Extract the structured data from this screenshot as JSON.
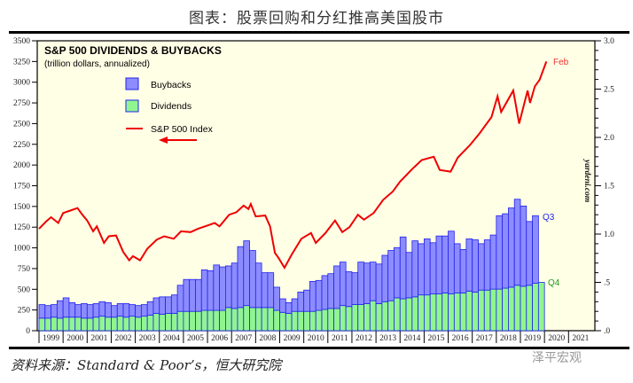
{
  "header": {
    "title": "图表：股票回购和分红推高美国股市"
  },
  "footer": {
    "source": "资料来源：Standard & Poor’s，恒大研究院",
    "watermark": "泽平宏观"
  },
  "chart_data": {
    "type": "bar",
    "title": "S&P 500 DIVIDENDS & BUYBACKS",
    "subtitle": "(trillion dollars, annualized)",
    "credit": "yardeni.com",
    "legend": [
      {
        "name": "Buybacks",
        "color": "#8c8cff"
      },
      {
        "name": "Dividends",
        "color": "#90f590"
      },
      {
        "name": "S&P 500 Index",
        "color": "#ee0000"
      }
    ],
    "legend_placement": "top-left",
    "annotations": {
      "buybacks_last": "Q3",
      "dividends_last": "Q4",
      "index_last": "Feb"
    },
    "left_axis": {
      "label": "S&P 500 Index",
      "ylim": [
        0,
        3500
      ],
      "ticks": [
        "0",
        "250",
        "500",
        "750",
        "1000",
        "1250",
        "1500",
        "1750",
        "2000",
        "2250",
        "2500",
        "2750",
        "3000",
        "3250",
        "3500"
      ]
    },
    "right_axis": {
      "label": "trillion dollars",
      "ylim": [
        0,
        3.0
      ],
      "ticks": [
        ".0",
        ".5",
        "1.0",
        "1.5",
        "2.0",
        "2.5",
        "3.0"
      ]
    },
    "x_tick_labels": [
      "1999",
      "2000",
      "2001",
      "2002",
      "2003",
      "2004",
      "2005",
      "2006",
      "2007",
      "2008",
      "2009",
      "2010",
      "2011",
      "2012",
      "2013",
      "2014",
      "2015",
      "2016",
      "2017",
      "2018",
      "2019",
      "2020",
      "2021"
    ],
    "xlim": [
      1999,
      2022
    ],
    "quarters_start": 1999,
    "series": [
      {
        "name": "Dividends",
        "axis": "right",
        "values": [
          0.13,
          0.13,
          0.14,
          0.13,
          0.14,
          0.14,
          0.14,
          0.13,
          0.13,
          0.14,
          0.15,
          0.14,
          0.14,
          0.15,
          0.14,
          0.15,
          0.14,
          0.15,
          0.16,
          0.18,
          0.17,
          0.18,
          0.18,
          0.2,
          0.2,
          0.2,
          0.2,
          0.21,
          0.21,
          0.21,
          0.21,
          0.24,
          0.23,
          0.24,
          0.26,
          0.24,
          0.24,
          0.24,
          0.24,
          0.21,
          0.19,
          0.18,
          0.2,
          0.2,
          0.2,
          0.2,
          0.21,
          0.22,
          0.23,
          0.23,
          0.26,
          0.25,
          0.27,
          0.27,
          0.28,
          0.31,
          0.28,
          0.3,
          0.31,
          0.34,
          0.33,
          0.34,
          0.35,
          0.37,
          0.37,
          0.38,
          0.38,
          0.39,
          0.38,
          0.39,
          0.39,
          0.41,
          0.4,
          0.42,
          0.42,
          0.43,
          0.43,
          0.44,
          0.45,
          0.47,
          0.46,
          0.47,
          0.49,
          0.5
        ]
      },
      {
        "name": "Buybacks",
        "axis": "right",
        "values": [
          0.14,
          0.13,
          0.13,
          0.18,
          0.2,
          0.15,
          0.13,
          0.15,
          0.14,
          0.14,
          0.15,
          0.15,
          0.12,
          0.13,
          0.14,
          0.12,
          0.12,
          0.12,
          0.14,
          0.16,
          0.18,
          0.17,
          0.19,
          0.27,
          0.33,
          0.33,
          0.33,
          0.42,
          0.41,
          0.47,
          0.45,
          0.43,
          0.47,
          0.63,
          0.67,
          0.59,
          0.46,
          0.36,
          0.36,
          0.24,
          0.14,
          0.11,
          0.13,
          0.2,
          0.22,
          0.31,
          0.31,
          0.35,
          0.36,
          0.44,
          0.45,
          0.36,
          0.33,
          0.44,
          0.42,
          0.4,
          0.41,
          0.48,
          0.52,
          0.52,
          0.64,
          0.47,
          0.58,
          0.53,
          0.58,
          0.53,
          0.6,
          0.59,
          0.65,
          0.51,
          0.45,
          0.54,
          0.54,
          0.48,
          0.52,
          0.56,
          0.76,
          0.77,
          0.82,
          0.89,
          0.83,
          0.66,
          0.7,
          null
        ]
      },
      {
        "name": "S&P 500 Index",
        "axis": "left",
        "type": "line",
        "x": [
          1999.0,
          1999.3,
          1999.5,
          1999.8,
          2000.0,
          2000.3,
          2000.6,
          2000.8,
          2001.0,
          2001.25,
          2001.4,
          2001.7,
          2001.9,
          2002.2,
          2002.5,
          2002.75,
          2002.9,
          2003.2,
          2003.5,
          2003.9,
          2004.2,
          2004.6,
          2004.9,
          2005.3,
          2005.6,
          2005.9,
          2006.3,
          2006.5,
          2006.9,
          2007.2,
          2007.5,
          2007.7,
          2007.8,
          2008.0,
          2008.4,
          2008.6,
          2008.8,
          2008.95,
          2009.2,
          2009.5,
          2009.9,
          2010.3,
          2010.5,
          2010.9,
          2011.3,
          2011.6,
          2011.9,
          2012.25,
          2012.5,
          2012.9,
          2013.3,
          2013.7,
          2014.0,
          2014.5,
          2014.9,
          2015.4,
          2015.65,
          2016.1,
          2016.4,
          2016.9,
          2017.3,
          2017.8,
          2018.05,
          2018.2,
          2018.7,
          2018.95,
          2019.3,
          2019.4,
          2019.6,
          2019.8,
          2020.08
        ],
        "values": [
          1230,
          1320,
          1370,
          1300,
          1420,
          1450,
          1480,
          1400,
          1330,
          1200,
          1260,
          1060,
          1140,
          1150,
          950,
          850,
          900,
          850,
          990,
          1100,
          1140,
          1110,
          1200,
          1190,
          1230,
          1260,
          1300,
          1260,
          1400,
          1430,
          1510,
          1470,
          1530,
          1380,
          1390,
          1260,
          940,
          880,
          760,
          920,
          1110,
          1180,
          1060,
          1180,
          1330,
          1190,
          1250,
          1400,
          1340,
          1420,
          1580,
          1680,
          1800,
          1950,
          2060,
          2100,
          1940,
          1920,
          2090,
          2240,
          2380,
          2580,
          2830,
          2640,
          2900,
          2500,
          2900,
          2750,
          2950,
          3030,
          3250
        ]
      }
    ]
  }
}
